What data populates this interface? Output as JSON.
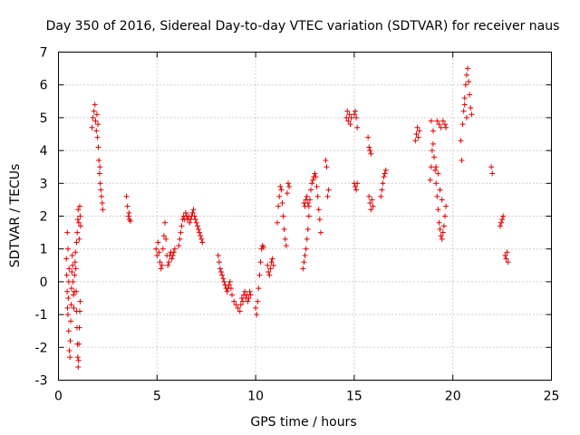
{
  "chart_data": {
    "type": "scatter",
    "title": "Day 350 of 2016, Sidereal Day-to-day VTEC variation (SDTVAR) for receiver naus",
    "xlabel": "GPS time / hours",
    "ylabel": "SDTVAR / TECUs",
    "xlim": [
      0,
      25
    ],
    "ylim": [
      -3,
      7
    ],
    "xticks": [
      0,
      5,
      10,
      15,
      20,
      25
    ],
    "yticks": [
      -3,
      -2,
      -1,
      0,
      1,
      2,
      3,
      4,
      5,
      6,
      7
    ],
    "xtick_labels": [
      "0",
      "5",
      "10",
      "15",
      "20",
      "25"
    ],
    "ytick_labels": [
      "-3",
      "-2",
      "-1",
      "0",
      "1",
      "2",
      "3",
      "4",
      "5",
      "6",
      "7"
    ],
    "grid": true,
    "marker": "plus",
    "color": "#e00000",
    "series": [
      {
        "name": "SDTVAR",
        "points": [
          [
            0.4,
            0.7
          ],
          [
            0.42,
            0.2
          ],
          [
            0.44,
            -0.3
          ],
          [
            0.46,
            -0.8
          ],
          [
            0.48,
            -1.0
          ],
          [
            0.5,
            -0.5
          ],
          [
            0.52,
            0.0
          ],
          [
            0.54,
            0.4
          ],
          [
            0.45,
            1.5
          ],
          [
            0.48,
            1.0
          ],
          [
            0.52,
            -1.5
          ],
          [
            0.55,
            -2.1
          ],
          [
            0.58,
            -2.3
          ],
          [
            0.6,
            -1.8
          ],
          [
            0.62,
            -1.2
          ],
          [
            0.64,
            -0.7
          ],
          [
            0.66,
            -0.2
          ],
          [
            0.68,
            0.3
          ],
          [
            0.7,
            0.8
          ],
          [
            0.72,
            0.5
          ],
          [
            0.74,
            0.0
          ],
          [
            0.76,
            -0.4
          ],
          [
            0.78,
            -0.8
          ],
          [
            0.8,
            -0.3
          ],
          [
            0.82,
            0.2
          ],
          [
            0.84,
            0.6
          ],
          [
            0.86,
            0.9
          ],
          [
            0.88,
            0.4
          ],
          [
            0.9,
            -0.3
          ],
          [
            0.92,
            -0.9
          ],
          [
            0.94,
            -1.4
          ],
          [
            0.96,
            -1.9
          ],
          [
            0.98,
            -2.3
          ],
          [
            1.0,
            -2.6
          ],
          [
            1.02,
            -2.4
          ],
          [
            1.04,
            -1.9
          ],
          [
            1.06,
            -1.4
          ],
          [
            1.08,
            -0.9
          ],
          [
            1.1,
            -0.6
          ],
          [
            0.92,
            1.2
          ],
          [
            0.95,
            1.5
          ],
          [
            0.98,
            1.9
          ],
          [
            1.0,
            2.2
          ],
          [
            1.03,
            1.8
          ],
          [
            1.05,
            1.3
          ],
          [
            1.08,
            2.3
          ],
          [
            1.1,
            2.0
          ],
          [
            1.12,
            1.7
          ],
          [
            1.7,
            4.7
          ],
          [
            1.75,
            5.0
          ],
          [
            1.8,
            5.2
          ],
          [
            1.85,
            5.4
          ],
          [
            1.88,
            4.9
          ],
          [
            1.92,
            4.6
          ],
          [
            1.95,
            5.1
          ],
          [
            1.98,
            4.4
          ],
          [
            2.02,
            4.1
          ],
          [
            2.05,
            3.7
          ],
          [
            2.08,
            3.3
          ],
          [
            2.12,
            3.0
          ],
          [
            2.15,
            2.8
          ],
          [
            2.18,
            2.6
          ],
          [
            2.22,
            2.4
          ],
          [
            2.25,
            2.2
          ],
          [
            2.1,
            3.5
          ],
          [
            2.0,
            4.8
          ],
          [
            3.45,
            2.6
          ],
          [
            3.5,
            2.3
          ],
          [
            3.55,
            2.0
          ],
          [
            3.6,
            1.9
          ],
          [
            3.65,
            1.85
          ],
          [
            3.58,
            2.1
          ],
          [
            4.95,
            1.0
          ],
          [
            5.0,
            0.8
          ],
          [
            5.05,
            1.2
          ],
          [
            5.1,
            0.9
          ],
          [
            5.15,
            0.6
          ],
          [
            5.2,
            0.4
          ],
          [
            5.25,
            0.5
          ],
          [
            5.3,
            1.0
          ],
          [
            5.35,
            1.4
          ],
          [
            5.4,
            1.8
          ],
          [
            5.45,
            1.3
          ],
          [
            5.5,
            0.8
          ],
          [
            5.55,
            0.5
          ],
          [
            5.6,
            0.6
          ],
          [
            5.65,
            0.8
          ],
          [
            5.7,
            0.9
          ],
          [
            5.75,
            0.7
          ],
          [
            5.8,
            0.8
          ],
          [
            5.85,
            0.9
          ],
          [
            5.9,
            1.0
          ],
          [
            6.1,
            1.1
          ],
          [
            6.15,
            1.3
          ],
          [
            6.2,
            1.5
          ],
          [
            6.25,
            1.7
          ],
          [
            6.3,
            1.9
          ],
          [
            6.35,
            2.0
          ],
          [
            6.4,
            1.9
          ],
          [
            6.45,
            2.1
          ],
          [
            6.5,
            2.0
          ],
          [
            6.55,
            1.9
          ],
          [
            6.6,
            2.0
          ],
          [
            6.65,
            1.8
          ],
          [
            6.7,
            1.9
          ],
          [
            6.75,
            2.0
          ],
          [
            6.8,
            2.1
          ],
          [
            6.85,
            2.2
          ],
          [
            6.9,
            2.0
          ],
          [
            6.95,
            1.9
          ],
          [
            7.0,
            1.8
          ],
          [
            7.05,
            1.7
          ],
          [
            7.1,
            1.6
          ],
          [
            7.15,
            1.5
          ],
          [
            7.2,
            1.4
          ],
          [
            7.25,
            1.3
          ],
          [
            7.3,
            1.2
          ],
          [
            8.1,
            0.8
          ],
          [
            8.15,
            0.6
          ],
          [
            8.2,
            0.4
          ],
          [
            8.25,
            0.3
          ],
          [
            8.3,
            0.2
          ],
          [
            8.35,
            0.1
          ],
          [
            8.4,
            0.0
          ],
          [
            8.45,
            -0.1
          ],
          [
            8.5,
            -0.2
          ],
          [
            8.55,
            -0.3
          ],
          [
            8.6,
            -0.2
          ],
          [
            8.65,
            -0.1
          ],
          [
            8.7,
            0.0
          ],
          [
            8.75,
            -0.2
          ],
          [
            8.8,
            -0.4
          ],
          [
            8.9,
            -0.6
          ],
          [
            9.0,
            -0.7
          ],
          [
            9.1,
            -0.8
          ],
          [
            9.2,
            -0.9
          ],
          [
            9.25,
            -0.7
          ],
          [
            9.3,
            -0.5
          ],
          [
            9.35,
            -0.6
          ],
          [
            9.4,
            -0.4
          ],
          [
            9.45,
            -0.3
          ],
          [
            9.5,
            -0.5
          ],
          [
            9.55,
            -0.4
          ],
          [
            9.6,
            -0.6
          ],
          [
            9.65,
            -0.5
          ],
          [
            9.7,
            -0.3
          ],
          [
            9.75,
            -0.4
          ],
          [
            10.0,
            -0.8
          ],
          [
            10.05,
            -1.0
          ],
          [
            10.1,
            -0.6
          ],
          [
            10.15,
            -0.2
          ],
          [
            10.2,
            0.2
          ],
          [
            10.25,
            0.6
          ],
          [
            10.3,
            1.0
          ],
          [
            10.35,
            1.1
          ],
          [
            10.4,
            1.05
          ],
          [
            10.6,
            0.5
          ],
          [
            10.65,
            0.3
          ],
          [
            10.7,
            0.2
          ],
          [
            10.75,
            0.4
          ],
          [
            10.8,
            0.6
          ],
          [
            10.85,
            0.7
          ],
          [
            10.9,
            0.5
          ],
          [
            11.1,
            1.8
          ],
          [
            11.15,
            2.3
          ],
          [
            11.2,
            2.6
          ],
          [
            11.25,
            2.9
          ],
          [
            11.3,
            2.8
          ],
          [
            11.35,
            2.4
          ],
          [
            11.4,
            2.0
          ],
          [
            11.45,
            1.6
          ],
          [
            11.5,
            1.3
          ],
          [
            11.55,
            1.1
          ],
          [
            11.6,
            2.7
          ],
          [
            11.65,
            3.0
          ],
          [
            11.7,
            2.9
          ],
          [
            12.4,
            0.4
          ],
          [
            12.45,
            0.6
          ],
          [
            12.5,
            0.8
          ],
          [
            12.55,
            1.0
          ],
          [
            12.6,
            1.3
          ],
          [
            12.65,
            1.6
          ],
          [
            12.7,
            2.0
          ],
          [
            12.45,
            2.4
          ],
          [
            12.5,
            2.3
          ],
          [
            12.55,
            2.5
          ],
          [
            12.6,
            2.6
          ],
          [
            12.65,
            2.4
          ],
          [
            12.7,
            2.3
          ],
          [
            12.75,
            2.5
          ],
          [
            12.8,
            2.8
          ],
          [
            12.85,
            3.0
          ],
          [
            12.9,
            3.1
          ],
          [
            12.95,
            3.2
          ],
          [
            13.0,
            3.3
          ],
          [
            13.05,
            3.2
          ],
          [
            13.1,
            2.9
          ],
          [
            13.15,
            2.6
          ],
          [
            13.2,
            2.2
          ],
          [
            13.25,
            1.9
          ],
          [
            13.3,
            1.5
          ],
          [
            13.55,
            3.7
          ],
          [
            13.6,
            3.5
          ],
          [
            13.65,
            2.6
          ],
          [
            13.7,
            2.8
          ],
          [
            14.6,
            5.0
          ],
          [
            14.65,
            5.2
          ],
          [
            14.7,
            4.9
          ],
          [
            14.75,
            5.1
          ],
          [
            14.8,
            4.8
          ],
          [
            14.85,
            5.0
          ],
          [
            15.0,
            5.1
          ],
          [
            15.05,
            5.2
          ],
          [
            15.1,
            5.0
          ],
          [
            15.15,
            4.7
          ],
          [
            15.0,
            3.0
          ],
          [
            15.05,
            2.9
          ],
          [
            15.1,
            2.8
          ],
          [
            15.15,
            3.0
          ],
          [
            15.7,
            4.4
          ],
          [
            15.75,
            4.1
          ],
          [
            15.8,
            4.0
          ],
          [
            15.85,
            3.9
          ],
          [
            15.75,
            2.6
          ],
          [
            15.8,
            2.4
          ],
          [
            15.85,
            2.2
          ],
          [
            15.9,
            2.5
          ],
          [
            15.95,
            2.3
          ],
          [
            16.35,
            2.6
          ],
          [
            16.4,
            2.8
          ],
          [
            16.45,
            3.0
          ],
          [
            16.5,
            3.2
          ],
          [
            16.55,
            3.3
          ],
          [
            16.6,
            3.4
          ],
          [
            18.1,
            4.3
          ],
          [
            18.15,
            4.5
          ],
          [
            18.2,
            4.7
          ],
          [
            18.25,
            4.4
          ],
          [
            18.3,
            4.6
          ],
          [
            18.85,
            3.1
          ],
          [
            18.9,
            3.5
          ],
          [
            18.95,
            4.0
          ],
          [
            19.0,
            4.2
          ],
          [
            19.05,
            3.8
          ],
          [
            19.1,
            3.4
          ],
          [
            19.15,
            3.0
          ],
          [
            19.2,
            2.6
          ],
          [
            19.25,
            2.2
          ],
          [
            19.3,
            1.8
          ],
          [
            19.35,
            1.6
          ],
          [
            19.4,
            1.4
          ],
          [
            19.45,
            1.3
          ],
          [
            19.5,
            1.5
          ],
          [
            19.55,
            1.7
          ],
          [
            19.6,
            2.0
          ],
          [
            19.65,
            2.3
          ],
          [
            18.9,
            4.9
          ],
          [
            19.0,
            4.6
          ],
          [
            19.2,
            4.9
          ],
          [
            19.3,
            4.8
          ],
          [
            19.4,
            4.7
          ],
          [
            19.5,
            4.9
          ],
          [
            19.6,
            4.8
          ],
          [
            19.65,
            4.7
          ],
          [
            19.15,
            3.5
          ],
          [
            19.25,
            3.3
          ],
          [
            19.35,
            2.8
          ],
          [
            19.45,
            2.5
          ],
          [
            20.4,
            4.3
          ],
          [
            20.45,
            3.7
          ],
          [
            20.5,
            4.8
          ],
          [
            20.55,
            5.2
          ],
          [
            20.6,
            5.6
          ],
          [
            20.65,
            6.0
          ],
          [
            20.7,
            6.3
          ],
          [
            20.75,
            6.5
          ],
          [
            20.8,
            6.1
          ],
          [
            20.85,
            5.7
          ],
          [
            20.9,
            5.3
          ],
          [
            20.95,
            5.1
          ],
          [
            20.6,
            5.4
          ],
          [
            20.7,
            5.0
          ],
          [
            21.95,
            3.5
          ],
          [
            22.0,
            3.3
          ],
          [
            22.4,
            1.7
          ],
          [
            22.45,
            1.8
          ],
          [
            22.5,
            1.9
          ],
          [
            22.55,
            2.0
          ],
          [
            22.65,
            0.8
          ],
          [
            22.7,
            0.7
          ],
          [
            22.75,
            0.9
          ],
          [
            22.8,
            0.6
          ]
        ]
      }
    ]
  }
}
